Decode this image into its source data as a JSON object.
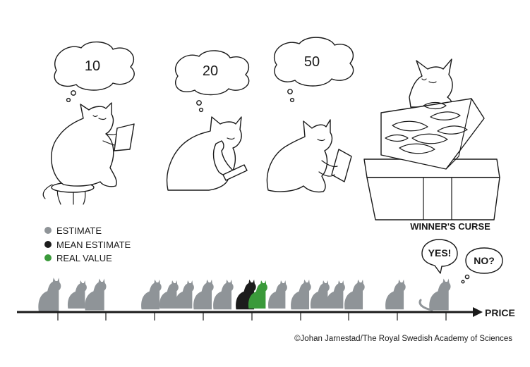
{
  "thought_bubbles": [
    {
      "value": "10"
    },
    {
      "value": "20"
    },
    {
      "value": "50"
    }
  ],
  "legend": [
    {
      "label": "ESTIMATE",
      "color": "#8f9498"
    },
    {
      "label": "MEAN ESTIMATE",
      "color": "#1c1c1c"
    },
    {
      "label": "REAL VALUE",
      "color": "#3a9a3a"
    }
  ],
  "winners_curse": {
    "title": "WINNER'S CURSE",
    "yes": "YES!",
    "no": "NO?"
  },
  "axis_label": "PRICE",
  "credit": "©Johan Jarnestad/The Royal Swedish Academy of Sciences",
  "colors": {
    "estimate": "#8f9498",
    "mean": "#1c1c1c",
    "real": "#3a9a3a",
    "line": "#1a1a1a"
  }
}
